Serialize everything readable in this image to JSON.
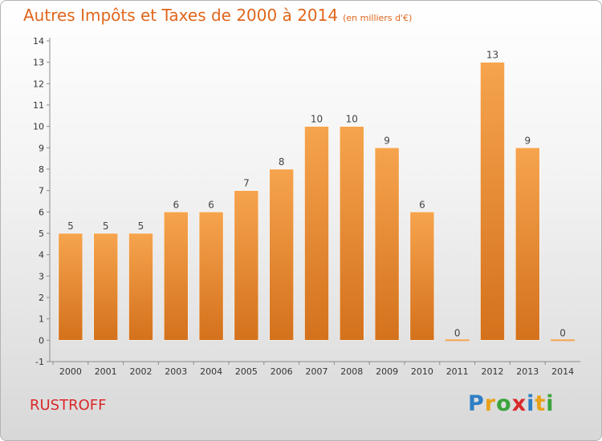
{
  "header": {
    "title": "Autres Impôts et Taxes de 2000 à 2014",
    "unit": "(en milliers d'€)"
  },
  "footer": {
    "commune": "RUSTROFF",
    "logo": "Proxiti"
  },
  "colors": {
    "title": "#e0661c",
    "commune": "#d9292b",
    "bar_top": "#f6a44e",
    "bar_bottom": "#d4711c"
  },
  "chart_data": {
    "type": "bar",
    "title": "Autres Impôts et Taxes de 2000 à 2014",
    "subtitle": "(en milliers d'€)",
    "xlabel": "",
    "ylabel": "",
    "categories": [
      "2000",
      "2001",
      "2002",
      "2003",
      "2004",
      "2005",
      "2006",
      "2007",
      "2008",
      "2009",
      "2010",
      "2011",
      "2012",
      "2013",
      "2014"
    ],
    "values": [
      5,
      5,
      5,
      6,
      6,
      7,
      8,
      10,
      10,
      9,
      6,
      0,
      13,
      9,
      0
    ],
    "data_labels": [
      "5",
      "5",
      "5",
      "6",
      "6",
      "7",
      "8",
      "10",
      "10",
      "9",
      "6",
      "0",
      "13",
      "9",
      "0"
    ],
    "ylim": [
      -1,
      14
    ],
    "yticks": [
      "-1",
      "0",
      "1",
      "2",
      "3",
      "4",
      "5",
      "6",
      "7",
      "8",
      "9",
      "10",
      "11",
      "12",
      "13",
      "14"
    ],
    "grid": false,
    "legend": "none"
  }
}
